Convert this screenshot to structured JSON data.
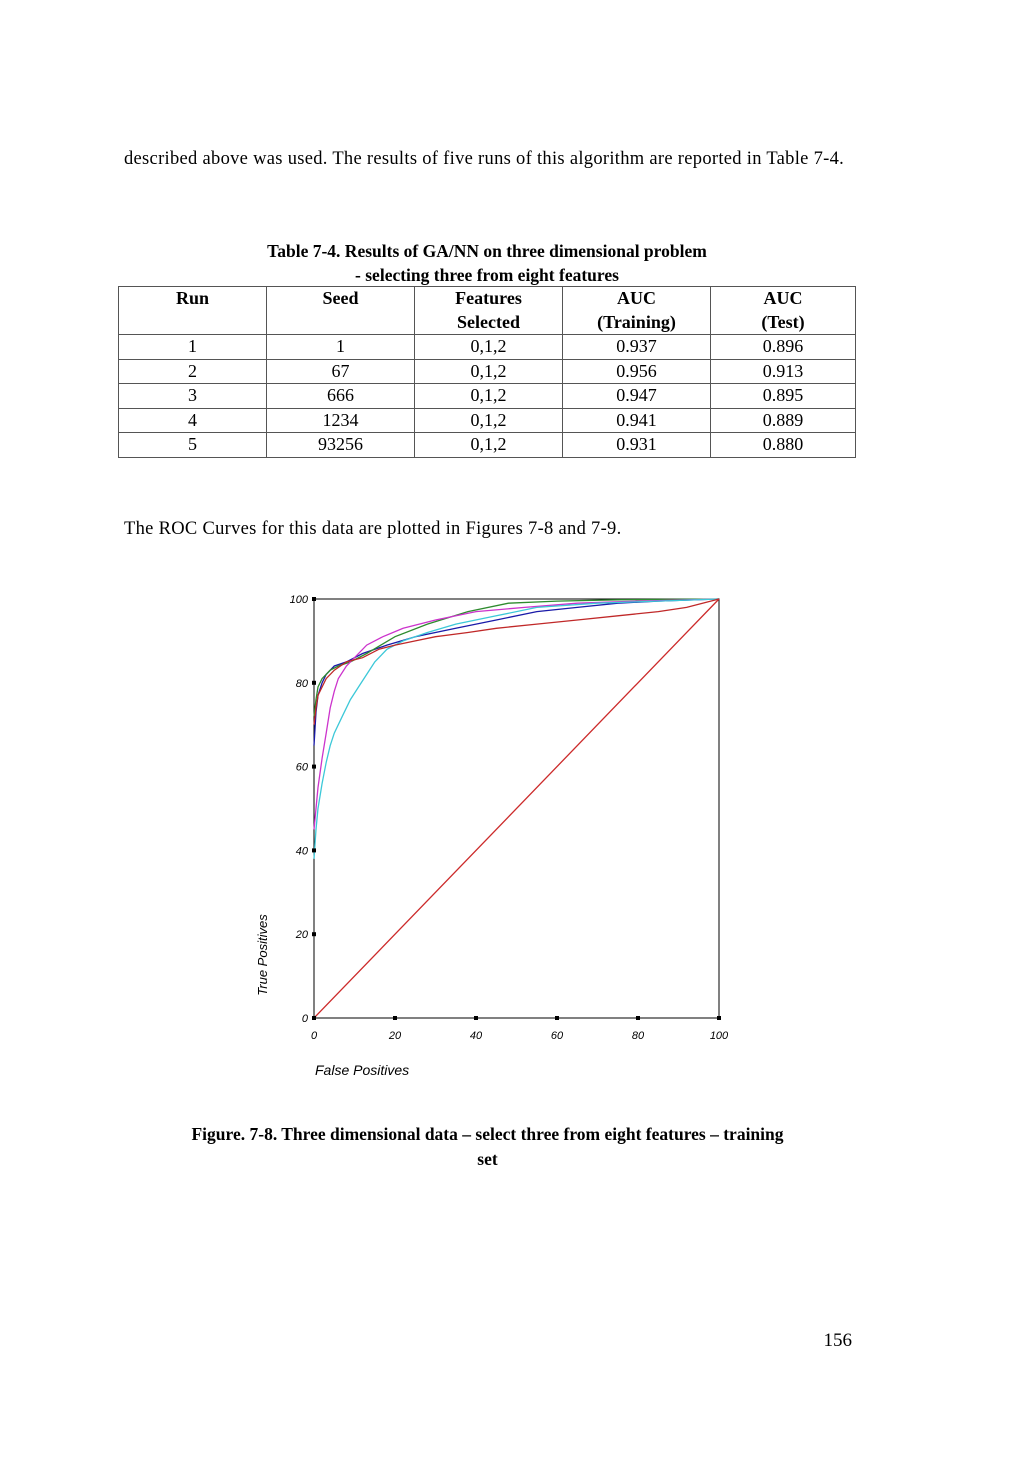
{
  "intro_text": "described above was used. The results of five runs of this algorithm are reported in Table 7-4.",
  "table": {
    "caption_line1": "Table 7-4. Results of GA/NN on three dimensional problem",
    "caption_line2": "- selecting three from eight features",
    "headers": [
      {
        "line1": "Run",
        "line2": ""
      },
      {
        "line1": "Seed",
        "line2": ""
      },
      {
        "line1": "Features",
        "line2": "Selected"
      },
      {
        "line1": "AUC",
        "line2": "(Training)"
      },
      {
        "line1": "AUC",
        "line2": "(Test)"
      }
    ],
    "rows": [
      [
        "1",
        "1",
        "0,1,2",
        "0.937",
        "0.896"
      ],
      [
        "2",
        "67",
        "0,1,2",
        "0.956",
        "0.913"
      ],
      [
        "3",
        "666",
        "0,1,2",
        "0.947",
        "0.895"
      ],
      [
        "4",
        "1234",
        "0,1,2",
        "0.941",
        "0.889"
      ],
      [
        "5",
        "93256",
        "0,1,2",
        "0.931",
        "0.880"
      ]
    ]
  },
  "roc_sentence": "The ROC Curves for this data are plotted in Figures 7-8 and 7-9.",
  "chart_data": {
    "type": "line",
    "xlabel": "False Positives",
    "ylabel": "True Positives",
    "xlim": [
      0,
      100
    ],
    "ylim": [
      0,
      100
    ],
    "x_ticks": [
      "0",
      "20",
      "40",
      "60",
      "80",
      "100"
    ],
    "y_ticks": [
      "0",
      "20",
      "40",
      "60",
      "80",
      "100"
    ],
    "grid": false,
    "series": [
      {
        "color": "#1a1aa8",
        "points": [
          [
            0,
            65
          ],
          [
            0.5,
            73
          ],
          [
            1,
            77
          ],
          [
            2,
            80
          ],
          [
            3,
            82
          ],
          [
            5,
            84
          ],
          [
            8,
            85
          ],
          [
            12,
            87
          ],
          [
            18,
            89
          ],
          [
            25,
            91
          ],
          [
            35,
            93
          ],
          [
            45,
            95
          ],
          [
            55,
            97
          ],
          [
            65,
            98
          ],
          [
            75,
            99
          ],
          [
            85,
            99.5
          ],
          [
            100,
            100
          ]
        ]
      },
      {
        "color": "#2e8b2e",
        "points": [
          [
            0,
            72
          ],
          [
            0.5,
            76
          ],
          [
            1,
            79
          ],
          [
            2,
            81
          ],
          [
            4,
            83
          ],
          [
            6,
            84
          ],
          [
            9,
            85
          ],
          [
            13,
            87
          ],
          [
            20,
            91
          ],
          [
            28,
            94
          ],
          [
            38,
            97
          ],
          [
            48,
            99
          ],
          [
            60,
            99.5
          ],
          [
            75,
            99.8
          ],
          [
            100,
            100
          ]
        ]
      },
      {
        "color": "#cc33cc",
        "points": [
          [
            0,
            45
          ],
          [
            0.5,
            50
          ],
          [
            1,
            55
          ],
          [
            2,
            62
          ],
          [
            3,
            68
          ],
          [
            4,
            74
          ],
          [
            5,
            78
          ],
          [
            6,
            81
          ],
          [
            8,
            84
          ],
          [
            10,
            86
          ],
          [
            13,
            89
          ],
          [
            17,
            91
          ],
          [
            22,
            93
          ],
          [
            30,
            95
          ],
          [
            40,
            97
          ],
          [
            52,
            98
          ],
          [
            65,
            99
          ],
          [
            80,
            99.5
          ],
          [
            100,
            100
          ]
        ]
      },
      {
        "color": "#3cc8d8",
        "points": [
          [
            0,
            38
          ],
          [
            0.5,
            45
          ],
          [
            1,
            50
          ],
          [
            2,
            56
          ],
          [
            3,
            61
          ],
          [
            4,
            65
          ],
          [
            5,
            68
          ],
          [
            7,
            72
          ],
          [
            9,
            76
          ],
          [
            11,
            79
          ],
          [
            13,
            82
          ],
          [
            15,
            85
          ],
          [
            18,
            88
          ],
          [
            22,
            90
          ],
          [
            28,
            92
          ],
          [
            35,
            94
          ],
          [
            45,
            96
          ],
          [
            55,
            98
          ],
          [
            70,
            99
          ],
          [
            85,
            99.5
          ],
          [
            100,
            100
          ]
        ]
      },
      {
        "color": "#c02828",
        "points": [
          [
            0,
            70
          ],
          [
            0.5,
            74
          ],
          [
            1,
            77
          ],
          [
            2,
            79
          ],
          [
            3,
            81
          ],
          [
            5,
            83
          ],
          [
            8,
            85
          ],
          [
            12,
            86
          ],
          [
            16,
            88
          ],
          [
            20,
            89
          ],
          [
            25,
            90
          ],
          [
            30,
            91
          ],
          [
            38,
            92
          ],
          [
            45,
            93
          ],
          [
            55,
            94
          ],
          [
            65,
            95
          ],
          [
            75,
            96
          ],
          [
            85,
            97
          ],
          [
            92,
            98
          ],
          [
            100,
            100
          ]
        ]
      },
      {
        "color": "#cc2a2a",
        "points": [
          [
            0,
            0
          ],
          [
            100,
            100
          ]
        ]
      }
    ]
  },
  "figure_caption_line1": "Figure. 7-8. Three dimensional data – select three from eight features – training",
  "figure_caption_line2": "set",
  "page_number": "156"
}
